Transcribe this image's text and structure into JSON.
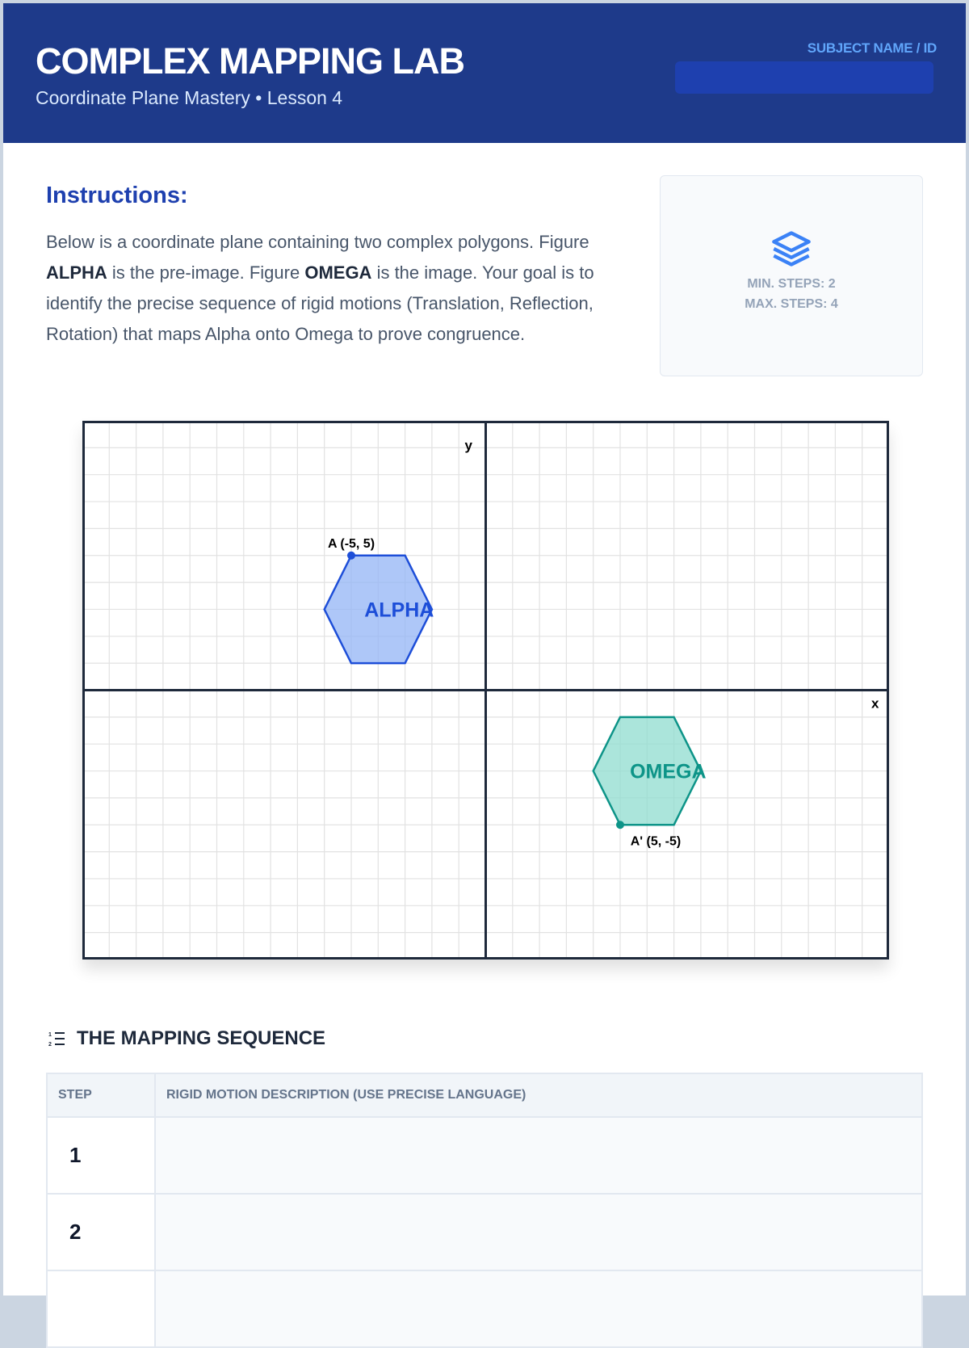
{
  "header": {
    "title": "COMPLEX MAPPING LAB",
    "subtitle": "Coordinate Plane Mastery • Lesson 4",
    "subject_label": "SUBJECT NAME / ID",
    "subject_value": ""
  },
  "instructions": {
    "heading": "Instructions:",
    "p1": "Below is a coordinate plane containing two complex polygons. Figure ",
    "alpha": "ALPHA",
    "p2": " is the pre-image. Figure ",
    "omega": "OMEGA",
    "p3": " is the image. Your goal is to identify the precise sequence of rigid motions (Translation, Reflection, Rotation) that maps Alpha onto Omega to prove congruence."
  },
  "info": {
    "icon": "layers-icon",
    "min_steps": "MIN. STEPS: 2",
    "max_steps": "MAX. STEPS: 4"
  },
  "plane": {
    "xlim": [
      -15,
      15
    ],
    "ylim": [
      -10,
      10
    ],
    "x_label": "x",
    "y_label": "y",
    "figures": [
      {
        "name": "ALPHA",
        "color": "#1d4ed8",
        "fill": "#93b4f5",
        "vertices": [
          [
            -5,
            5
          ],
          [
            -3,
            5
          ],
          [
            -2,
            3
          ],
          [
            -3,
            1
          ],
          [
            -5,
            1
          ],
          [
            -6,
            3
          ]
        ],
        "point_label": "A (-5, 5)"
      },
      {
        "name": "OMEGA",
        "color": "#0d9488",
        "fill": "#8fdccf",
        "vertices": [
          [
            5,
            -5
          ],
          [
            7,
            -5
          ],
          [
            8,
            -3
          ],
          [
            7,
            -1
          ],
          [
            5,
            -1
          ],
          [
            4,
            -3
          ]
        ],
        "point_label": "A' (5, -5)"
      }
    ]
  },
  "sequence": {
    "icon": "ordered-list-icon",
    "heading": "THE MAPPING SEQUENCE",
    "col_step": "STEP",
    "col_desc": "RIGID MOTION DESCRIPTION (USE PRECISE LANGUAGE)",
    "rows": [
      {
        "step": "1",
        "desc": ""
      },
      {
        "step": "2",
        "desc": ""
      },
      {
        "step": "",
        "desc": ""
      }
    ]
  }
}
